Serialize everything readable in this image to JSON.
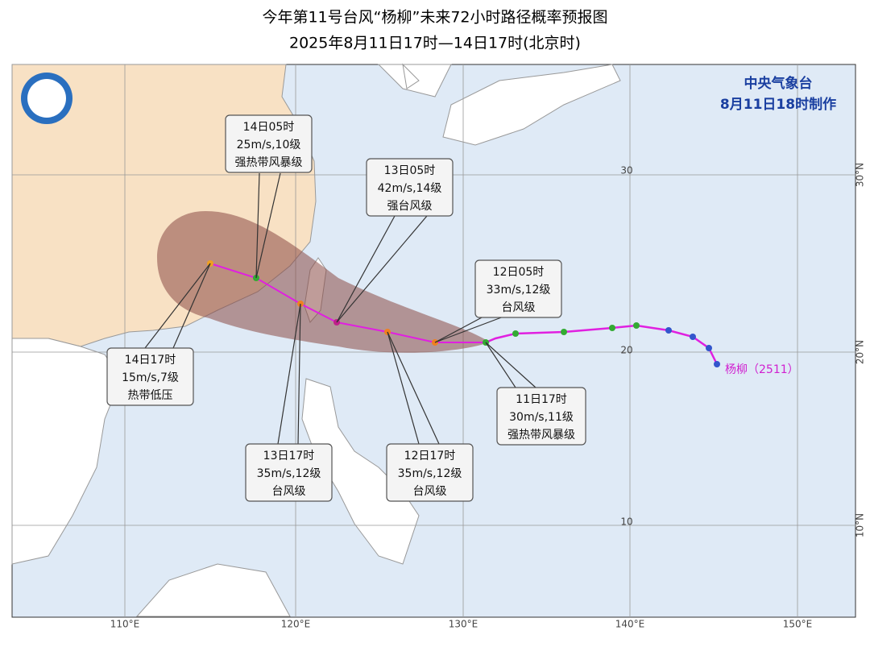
{
  "header": {
    "title": "今年第11号台风“杨柳”未来72小时路径概率预报图",
    "subtitle": "2025年8月11日17时—14日17时(北京时)"
  },
  "agency": {
    "name": "中央气象台",
    "issued": "8月11日18时制作"
  },
  "forecasts": [
    {
      "time": "14日05时",
      "wind": "25m/s,10级",
      "category": "强热带风暴级"
    },
    {
      "time": "13日05时",
      "wind": "42m/s,14级",
      "category": "强台风级"
    },
    {
      "time": "12日05时",
      "wind": "33m/s,12级",
      "category": "台风级"
    },
    {
      "time": "14日17时",
      "wind": "15m/s,7级",
      "category": "热带低压"
    },
    {
      "time": "13日17时",
      "wind": "35m/s,12级",
      "category": "台风级"
    },
    {
      "time": "12日17时",
      "wind": "35m/s,12级",
      "category": "台风级"
    },
    {
      "time": "11日17时",
      "wind": "30m/s,11级",
      "category": "强热带风暴级"
    }
  ],
  "typhoon_label": "杨柳（2511）",
  "lon_labels": [
    "110°E",
    "120°E",
    "130°E",
    "140°E",
    "150°E"
  ],
  "lat_labels": [
    "10°N",
    "20°N",
    "30°N"
  ],
  "grid_labels": [
    "30",
    "20",
    "10"
  ]
}
